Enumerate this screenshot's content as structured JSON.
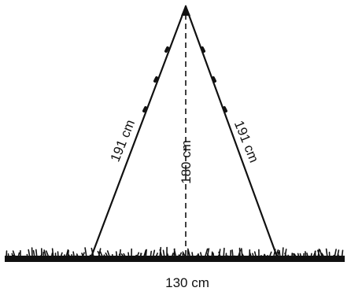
{
  "labels": {
    "left_side": "191 cm",
    "height": "180 cm",
    "right_side": "191 cm",
    "base": "130 cm"
  },
  "colors": {
    "ink": "#111111",
    "background": "#ffffff"
  }
}
